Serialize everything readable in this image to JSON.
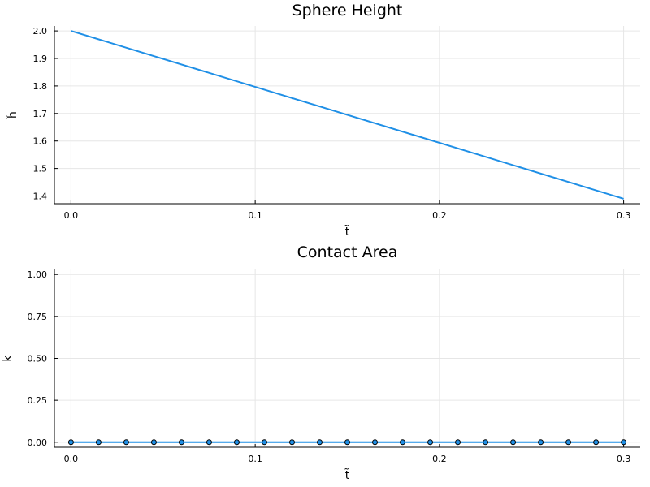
{
  "chart_data": [
    {
      "type": "line",
      "title": "Sphere Height",
      "xlabel": "t̃",
      "ylabel": "h̃",
      "xlim": [
        -0.009,
        0.309
      ],
      "ylim": [
        1.372,
        2.018
      ],
      "xticks": [
        0.0,
        0.1,
        0.2,
        0.3
      ],
      "xtick_labels": [
        "0.0",
        "0.1",
        "0.2",
        "0.3"
      ],
      "yticks": [
        1.4,
        1.5,
        1.6,
        1.7,
        1.8,
        1.9,
        2.0
      ],
      "ytick_labels": [
        "1.4",
        "1.5",
        "1.6",
        "1.7",
        "1.8",
        "1.9",
        "2.0"
      ],
      "grid": true,
      "legend": "none",
      "series": [
        {
          "x": [
            0.0,
            0.3
          ],
          "y": [
            2.0,
            1.39
          ],
          "color": "#1f8fe6",
          "markers": false
        }
      ]
    },
    {
      "type": "line",
      "title": "Contact Area",
      "xlabel": "t̃",
      "ylabel": "k",
      "xlim": [
        -0.009,
        0.309
      ],
      "ylim": [
        -0.03,
        1.03
      ],
      "xticks": [
        0.0,
        0.1,
        0.2,
        0.3
      ],
      "xtick_labels": [
        "0.0",
        "0.1",
        "0.2",
        "0.3"
      ],
      "yticks": [
        0.0,
        0.25,
        0.5,
        0.75,
        1.0
      ],
      "ytick_labels": [
        "0.00",
        "0.25",
        "0.50",
        "0.75",
        "1.00"
      ],
      "grid": true,
      "legend": "none",
      "series": [
        {
          "x": [
            0.0,
            0.015,
            0.03,
            0.045,
            0.06,
            0.075,
            0.09,
            0.105,
            0.12,
            0.135,
            0.15,
            0.165,
            0.18,
            0.195,
            0.21,
            0.225,
            0.24,
            0.255,
            0.27,
            0.285,
            0.3
          ],
          "y": [
            0,
            0,
            0,
            0,
            0,
            0,
            0,
            0,
            0,
            0,
            0,
            0,
            0,
            0,
            0,
            0,
            0,
            0,
            0,
            0,
            0
          ],
          "color": "#1f8fe6",
          "markers": true
        }
      ]
    }
  ]
}
